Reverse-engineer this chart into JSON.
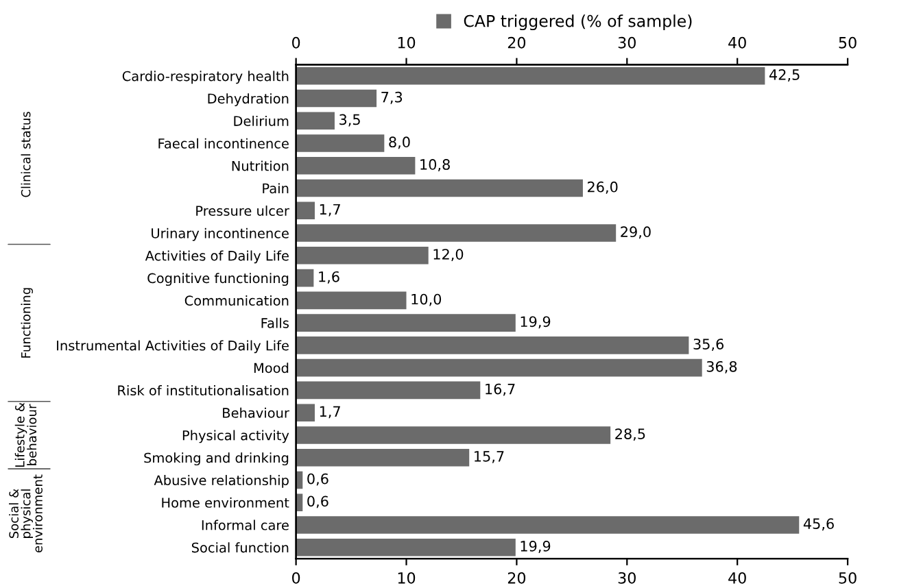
{
  "chart_data": {
    "type": "bar",
    "orientation": "horizontal",
    "categories": [
      "Cardio-respiratory health",
      "Dehydration",
      "Delirium",
      "Faecal incontinence",
      "Nutrition",
      "Pain",
      "Pressure ulcer",
      "Urinary incontinence",
      "Activities of Daily Life",
      "Cognitive functioning",
      "Communication",
      "Falls",
      "Instrumental Activities of Daily Life",
      "Mood",
      "Risk of institutionalisation",
      "Behaviour",
      "Physical activity",
      "Smoking and drinking",
      "Abusive relationship",
      "Home environment",
      "Informal care",
      "Social function"
    ],
    "series": [
      {
        "name": "CAP triggered (% of sample)",
        "color": "#6b6b6b",
        "values": [
          42.5,
          7.3,
          3.5,
          8.0,
          10.8,
          26.0,
          1.7,
          29.0,
          12.0,
          1.6,
          10.0,
          19.9,
          35.6,
          36.8,
          16.7,
          1.7,
          28.5,
          15.7,
          0.6,
          0.6,
          45.6,
          19.9
        ],
        "value_labels": [
          "42,5",
          "7,3",
          "3,5",
          "8,0",
          "10,8",
          "26,0",
          "1,7",
          "29,0",
          "12,0",
          "1,6",
          "10,0",
          "19,9",
          "35,6",
          "36,8",
          "16,7",
          "1,7",
          "28,5",
          "15,7",
          "0,6",
          "0,6",
          "45,6",
          "19,9"
        ]
      }
    ],
    "xlim": [
      0,
      50
    ],
    "xticks": [
      0,
      10,
      20,
      30,
      40,
      50
    ],
    "x2lim": [
      0,
      50
    ],
    "x2ticks": [
      0,
      10,
      20,
      30,
      40,
      50
    ],
    "annotations": [
      "Clinical status",
      "Functioning",
      "Lifestyle & behaviour",
      "Social & physical environment"
    ],
    "legend": "top",
    "grid": false
  }
}
